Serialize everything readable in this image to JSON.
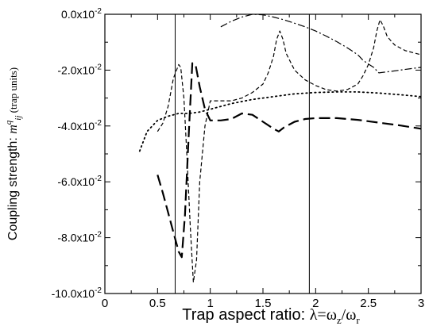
{
  "chart_data": {
    "type": "line",
    "title": "",
    "xlabel": {
      "prefix": "Trap aspect ratio: ",
      "formula": {
        "lambda": "λ",
        "eq": "=",
        "omega": "ω",
        "sub_z": "z",
        "slash": "/",
        "sub_r": "r"
      }
    },
    "ylabel": {
      "prefix": "Coupling strength: ",
      "symbol": "m",
      "sup": "q",
      "sub": "ij",
      "units": " (trap units)"
    },
    "xlim": [
      0,
      3
    ],
    "ylim": [
      -0.1,
      0.0
    ],
    "x_ticks": [
      {
        "value": 0,
        "label": "0"
      },
      {
        "value": 0.5,
        "label": "0.5"
      },
      {
        "value": 1,
        "label": "1"
      },
      {
        "value": 1.5,
        "label": "1.5"
      },
      {
        "value": 2,
        "label": "2"
      },
      {
        "value": 2.5,
        "label": "2.5"
      },
      {
        "value": 3,
        "label": "3"
      }
    ],
    "y_ticks": [
      {
        "value": 0.0,
        "mantissa": "0.0x10",
        "exp": "-2"
      },
      {
        "value": -0.02,
        "mantissa": "-2.0x10",
        "exp": "-2"
      },
      {
        "value": -0.04,
        "mantissa": "-4.0x10",
        "exp": "-2"
      },
      {
        "value": -0.06,
        "mantissa": "-6.0x10",
        "exp": "-2"
      },
      {
        "value": -0.08,
        "mantissa": "-8.0x10",
        "exp": "-2"
      },
      {
        "value": -0.1,
        "mantissa": "-10.0x10",
        "exp": "-2"
      }
    ],
    "vertical_lines": [
      0.667,
      1.94
    ],
    "grid": false,
    "legend": "none",
    "series": [
      {
        "style": "long-dash",
        "color": "#000000",
        "x": [
          0.5,
          0.55,
          0.6,
          0.65,
          0.7,
          0.73,
          0.76,
          0.8,
          0.83,
          0.86,
          0.9,
          0.95,
          1.0,
          1.1,
          1.2,
          1.3,
          1.4,
          1.5,
          1.6,
          1.65,
          1.7,
          1.8,
          1.9,
          2.0,
          2.2,
          2.4,
          2.6,
          2.8,
          3.0
        ],
        "y": [
          -0.0575,
          -0.064,
          -0.071,
          -0.078,
          -0.085,
          -0.087,
          -0.072,
          -0.04,
          -0.0175,
          -0.018,
          -0.026,
          -0.034,
          -0.038,
          -0.038,
          -0.0375,
          -0.0355,
          -0.036,
          -0.0385,
          -0.041,
          -0.042,
          -0.0405,
          -0.0385,
          -0.0375,
          -0.0372,
          -0.0372,
          -0.0378,
          -0.0388,
          -0.0398,
          -0.041
        ]
      },
      {
        "style": "short-dash",
        "color": "#000000",
        "x": [
          0.5,
          0.55,
          0.6,
          0.65,
          0.7,
          0.72,
          0.75,
          0.78,
          0.81,
          0.84,
          0.87,
          0.9,
          0.95,
          1.0,
          1.1,
          1.2,
          1.3,
          1.4,
          1.5,
          1.55,
          1.6,
          1.63,
          1.66,
          1.69,
          1.72,
          1.8,
          1.9,
          2.0,
          2.1,
          2.2,
          2.3,
          2.4,
          2.45,
          2.5,
          2.55,
          2.58,
          2.61,
          2.64,
          2.68,
          2.75,
          2.85,
          3.0
        ],
        "y": [
          -0.042,
          -0.039,
          -0.033,
          -0.023,
          -0.018,
          -0.019,
          -0.03,
          -0.052,
          -0.076,
          -0.096,
          -0.088,
          -0.06,
          -0.04,
          -0.031,
          -0.031,
          -0.031,
          -0.03,
          -0.028,
          -0.025,
          -0.021,
          -0.015,
          -0.009,
          -0.006,
          -0.009,
          -0.014,
          -0.02,
          -0.0235,
          -0.0255,
          -0.027,
          -0.0275,
          -0.027,
          -0.025,
          -0.022,
          -0.018,
          -0.012,
          -0.006,
          -0.002,
          -0.004,
          -0.008,
          -0.011,
          -0.013,
          -0.0145
        ]
      },
      {
        "style": "dotted",
        "color": "#000000",
        "x": [
          0.33,
          0.4,
          0.5,
          0.6,
          0.7,
          0.8,
          0.9,
          1.0,
          1.2,
          1.4,
          1.6,
          1.8,
          2.0,
          2.2,
          2.4,
          2.6,
          2.8,
          3.0
        ],
        "y": [
          -0.049,
          -0.042,
          -0.038,
          -0.0365,
          -0.0355,
          -0.0355,
          -0.035,
          -0.034,
          -0.032,
          -0.0305,
          -0.0295,
          -0.0285,
          -0.028,
          -0.0278,
          -0.0278,
          -0.0282,
          -0.0288,
          -0.0295
        ]
      },
      {
        "style": "dash-dot",
        "color": "#000000",
        "x": [
          1.1,
          1.2,
          1.3,
          1.4,
          1.5,
          1.6,
          1.7,
          1.8,
          1.9,
          2.0,
          2.1,
          2.2,
          2.3,
          2.4,
          2.45,
          2.5,
          2.55,
          2.6,
          2.7,
          2.8,
          2.9,
          3.0
        ],
        "y": [
          -0.0045,
          -0.0025,
          -0.001,
          0.0,
          -0.0002,
          -0.001,
          -0.002,
          -0.0032,
          -0.0045,
          -0.006,
          -0.0078,
          -0.0098,
          -0.012,
          -0.0145,
          -0.0165,
          -0.0178,
          -0.019,
          -0.021,
          -0.0205,
          -0.02,
          -0.0195,
          -0.019
        ]
      }
    ]
  }
}
